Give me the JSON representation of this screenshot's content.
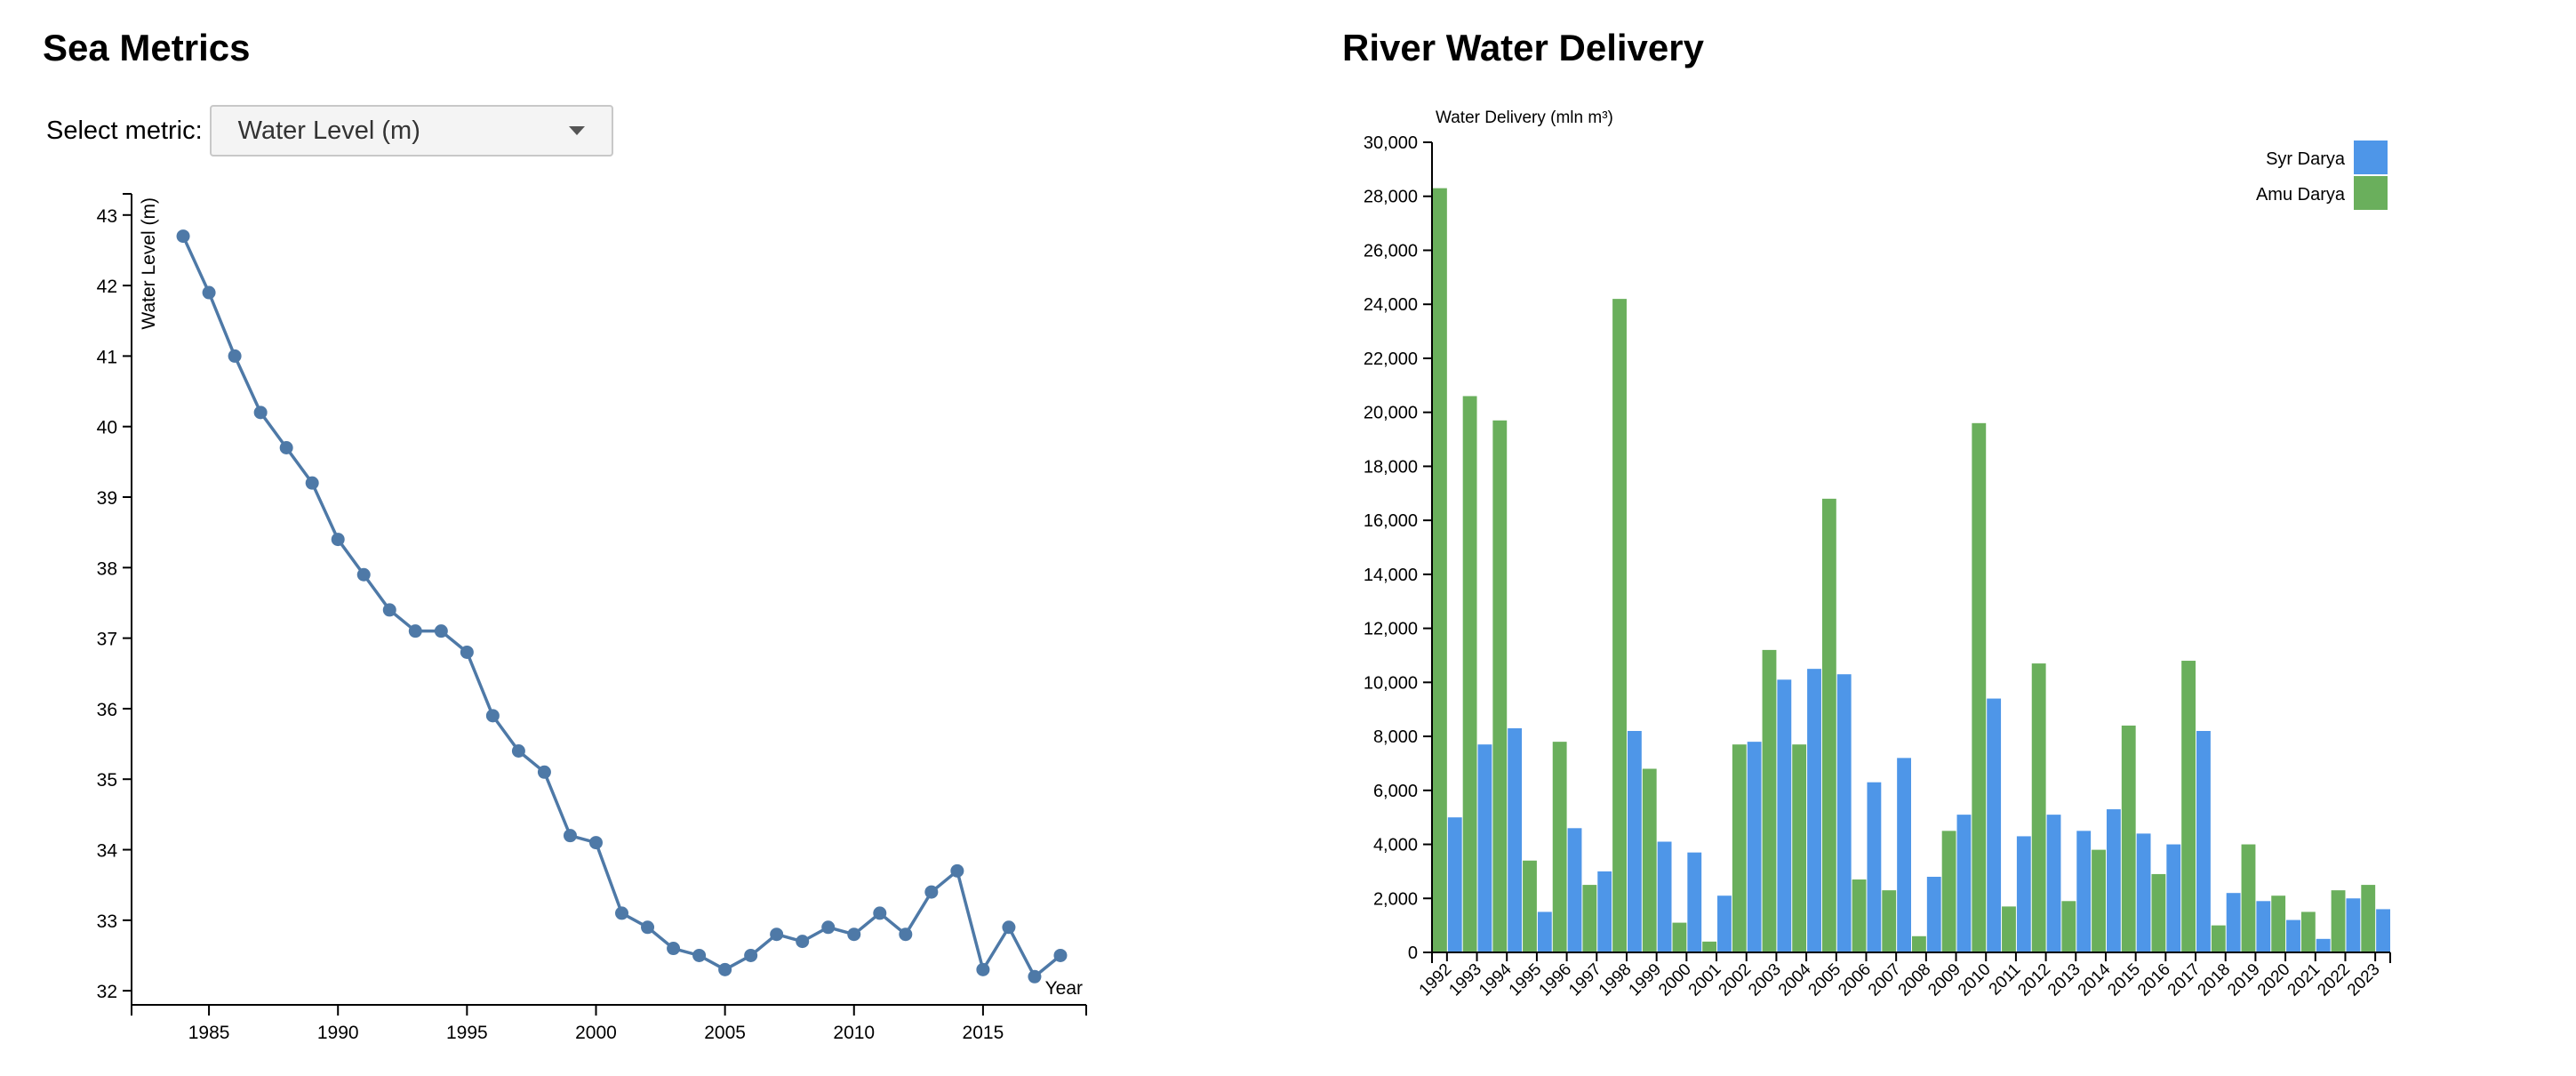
{
  "left_panel": {
    "title": "Sea Metrics",
    "select_label": "Select metric:",
    "select_value": "Water Level (m)"
  },
  "right_panel": {
    "title": "River Water Delivery"
  },
  "colors": {
    "line": "#4e79a7",
    "syr_darya": "#4e96e8",
    "amu_darya": "#6aaf5c",
    "axis": "#000000"
  },
  "chart_data": [
    {
      "type": "line",
      "title": "",
      "xlabel": "Year",
      "ylabel": "Water Level (m)",
      "xlim": [
        1982,
        2019
      ],
      "ylim": [
        31.8,
        43.3
      ],
      "x_ticks": [
        1985,
        1990,
        1995,
        2000,
        2005,
        2010,
        2015
      ],
      "y_ticks": [
        32,
        33,
        34,
        35,
        36,
        37,
        38,
        39,
        40,
        41,
        42,
        43
      ],
      "grid": false,
      "series": [
        {
          "x": [
            1984,
            1985,
            1986,
            1987,
            1988,
            1989,
            1990,
            1991,
            1992,
            1993,
            1994,
            1995,
            1996,
            1997,
            1998,
            1999,
            2000,
            2001,
            2002,
            2003,
            2004,
            2005,
            2006,
            2007,
            2008,
            2009,
            2010,
            2011,
            2012,
            2013,
            2014,
            2015,
            2016,
            2017,
            2018
          ],
          "y": [
            42.7,
            41.9,
            41.0,
            40.2,
            39.7,
            39.2,
            38.4,
            37.9,
            37.4,
            37.1,
            37.1,
            36.8,
            35.9,
            35.4,
            35.1,
            34.2,
            34.1,
            33.1,
            32.9,
            32.6,
            32.5,
            32.3,
            32.5,
            32.8,
            32.7,
            32.9,
            32.8,
            33.1,
            32.8,
            33.4,
            33.7,
            32.3,
            32.9,
            32.2,
            32.5
          ]
        }
      ]
    },
    {
      "type": "bar",
      "title": "",
      "xlabel": "",
      "ylabel": "Water Delivery (mln m³)",
      "ylim": [
        0,
        30000
      ],
      "y_ticks": [
        0,
        2000,
        4000,
        6000,
        8000,
        10000,
        12000,
        14000,
        16000,
        18000,
        20000,
        22000,
        24000,
        26000,
        28000,
        30000
      ],
      "legend_position": "top-right",
      "grid": false,
      "categories": [
        "1992",
        "1993",
        "1994",
        "1995",
        "1996",
        "1997",
        "1998",
        "1999",
        "2000",
        "2001",
        "2002",
        "2003",
        "2004",
        "2005",
        "2006",
        "2007",
        "2008",
        "2009",
        "2010",
        "2011",
        "2012",
        "2013",
        "2014",
        "2015",
        "2016",
        "2017",
        "2018",
        "2019",
        "2020",
        "2021",
        "2022",
        "2023"
      ],
      "series": [
        {
          "name": "Amu Darya",
          "values": [
            28300,
            20600,
            19700,
            3400,
            7800,
            2500,
            24200,
            6800,
            1100,
            400,
            7700,
            11200,
            7700,
            16800,
            2700,
            2300,
            600,
            4500,
            19600,
            1700,
            10700,
            1900,
            3800,
            8400,
            2900,
            10800,
            1000,
            4000,
            2100,
            1500,
            2300,
            2500
          ]
        },
        {
          "name": "Syr Darya",
          "values": [
            5000,
            7700,
            8300,
            1500,
            4600,
            3000,
            8200,
            4100,
            3700,
            2100,
            7800,
            10100,
            10500,
            10300,
            6300,
            7200,
            2800,
            5100,
            9400,
            4300,
            5100,
            4500,
            5300,
            4400,
            4000,
            8200,
            2200,
            1900,
            1200,
            500,
            2000,
            1600
          ]
        }
      ]
    }
  ]
}
